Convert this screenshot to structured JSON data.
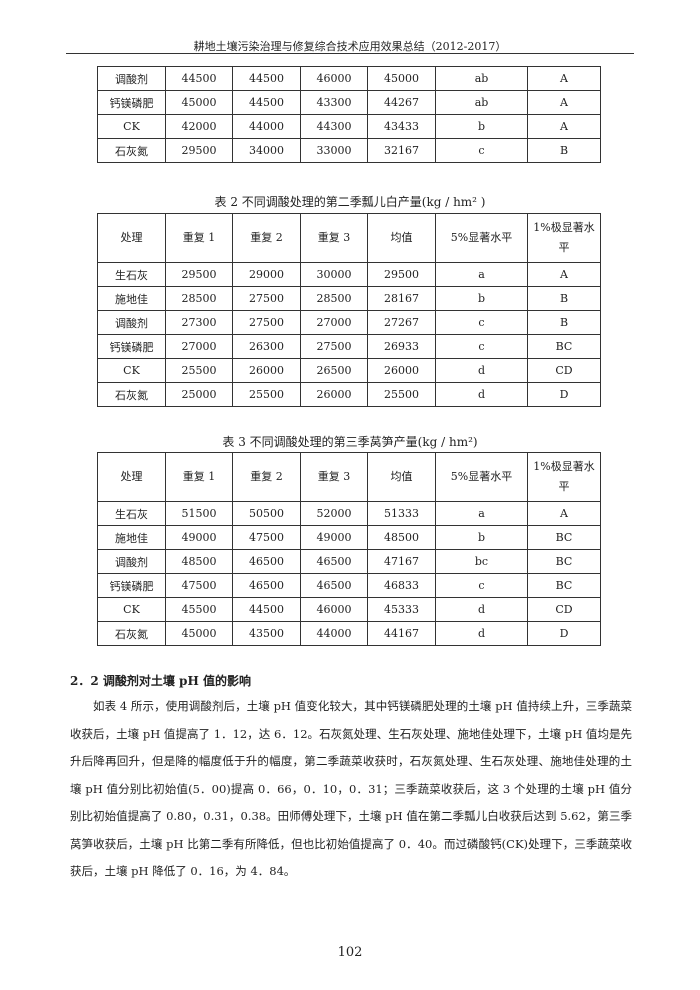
{
  "header": {
    "title": "耕地土壤污染治理与修复综合技术应用效果总结（2012-2017）"
  },
  "table1": {
    "rows": [
      [
        "调酸剂",
        "44500",
        "44500",
        "46000",
        "45000",
        "ab",
        "A"
      ],
      [
        "钙镁磷肥",
        "45000",
        "44500",
        "43300",
        "44267",
        "ab",
        "A"
      ],
      [
        "CK",
        "42000",
        "44000",
        "44300",
        "43433",
        "b",
        "A"
      ],
      [
        "石灰氮",
        "29500",
        "34000",
        "33000",
        "32167",
        "c",
        "B"
      ]
    ]
  },
  "table2": {
    "caption": "表 2  不同调酸处理的第二季瓢儿白产量(kg / hm² )",
    "headers": [
      "处理",
      "重复 1",
      "重复 2",
      "重复 3",
      "均值",
      "5%显著水平",
      "1%极显著水平"
    ],
    "rows": [
      [
        "生石灰",
        "29500",
        "29000",
        "30000",
        "29500",
        "a",
        "A"
      ],
      [
        "施地佳",
        "28500",
        "27500",
        "28500",
        "28167",
        "b",
        "B"
      ],
      [
        "调酸剂",
        "27300",
        "27500",
        "27000",
        "27267",
        "c",
        "B"
      ],
      [
        "钙镁磷肥",
        "27000",
        "26300",
        "27500",
        "26933",
        "c",
        "BC"
      ],
      [
        "CK",
        "25500",
        "26000",
        "26500",
        "26000",
        "d",
        "CD"
      ],
      [
        "石灰氮",
        "25000",
        "25500",
        "26000",
        "25500",
        "d",
        "D"
      ]
    ]
  },
  "table3": {
    "caption": "表 3  不同调酸处理的第三季莴笋产量(kg / hm²)",
    "headers": [
      "处理",
      "重复 1",
      "重复 2",
      "重复 3",
      "均值",
      "5%显著水平",
      "1%极显著水平"
    ],
    "rows": [
      [
        "生石灰",
        "51500",
        "50500",
        "52000",
        "51333",
        "a",
        "A"
      ],
      [
        "施地佳",
        "49000",
        "47500",
        "49000",
        "48500",
        "b",
        "BC"
      ],
      [
        "调酸剂",
        "48500",
        "46500",
        "46500",
        "47167",
        "bc",
        "BC"
      ],
      [
        "钙镁磷肥",
        "47500",
        "46500",
        "46500",
        "46833",
        "c",
        "BC"
      ],
      [
        "CK",
        "45500",
        "44500",
        "46000",
        "45333",
        "d",
        "CD"
      ],
      [
        "石灰氮",
        "45000",
        "43500",
        "44000",
        "44167",
        "d",
        "D"
      ]
    ]
  },
  "section": {
    "heading": "2．2 调酸剂对土壤 pH 值的影响",
    "paragraph": "如表 4 所示，使用调酸剂后，土壤 pH 值变化较大，其中钙镁磷肥处理的土壤 pH 值持续上升，三季蔬菜收获后，土壤 pH 值提高了 1．12，达 6．12。石灰氮处理、生石灰处理、施地佳处理下，土壤 pH 值均是先升后降再回升，但是降的幅度低于升的幅度，第二季蔬菜收获时，石灰氮处理、生石灰处理、施地佳处理的土壤 pH 值分别比初始值(5．00)提高 0．66，0．10，0．31；三季蔬菜收获后，这 3 个处理的土壤 pH 值分别比初始值提高了 0.80，0.31，0.38。田师傅处理下，土壤 pH 值在第二季瓢儿白收获后达到 5.62，第三季莴笋收获后，土壤 pH 比第二季有所降低，但也比初始值提高了 0．40。而过磷酸钙(CK)处理下，三季蔬菜收获后，土壤 pH 降低了 0．16，为 4．84。"
  },
  "page_number": "102"
}
